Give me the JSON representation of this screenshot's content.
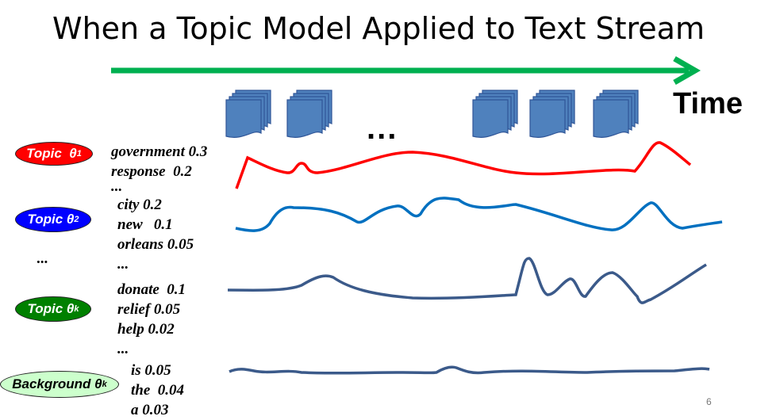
{
  "title": "When a Topic Model Applied to Text Stream",
  "time_label": "Time",
  "ellipsis": "...",
  "topics": [
    {
      "label": "Topic",
      "symbol": "θ",
      "subscript": "1",
      "color": "#ff0000",
      "text_color": "#ffffff",
      "words": [
        "government 0.3",
        "response  0.2",
        "..."
      ]
    },
    {
      "label": "Topic",
      "symbol": "θ",
      "subscript": "2",
      "color": "#0000ff",
      "text_color": "#ffffff",
      "words": [
        "city 0.2",
        "new   0.1",
        "orleans 0.05",
        "..."
      ]
    },
    {
      "label": "Topic",
      "symbol": "θ",
      "subscript": "k",
      "color": "#008000",
      "text_color": "#ffffff",
      "words": [
        "donate  0.1",
        "relief 0.05",
        "help 0.02",
        "..."
      ]
    },
    {
      "label": "Background",
      "symbol": "θ",
      "subscript": "k",
      "color": "#ccffcc",
      "text_color": "#000000",
      "words": [
        "is 0.05",
        "the  0.04",
        "a 0.03"
      ]
    }
  ],
  "topic_ellipsis": "...",
  "page_number": "6",
  "colors": {
    "time_arrow": "#00b050",
    "doc_icon": "#4f81bd",
    "doc_stroke": "#2f5597",
    "curve_red": "#ff0000",
    "curve_blue": "#0070c0",
    "curve_dark": "#3b5a8a"
  }
}
